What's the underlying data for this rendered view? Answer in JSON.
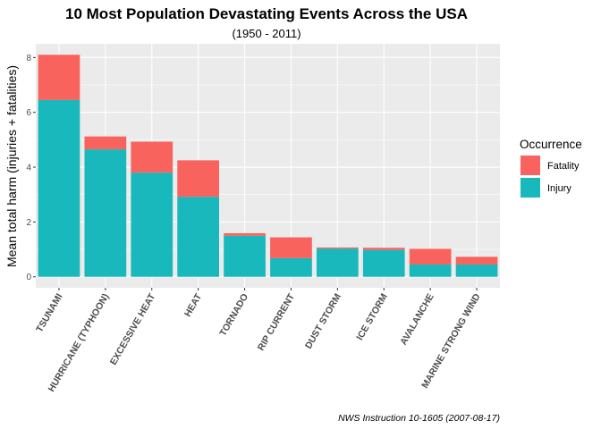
{
  "chart_data": {
    "type": "bar",
    "stacked": true,
    "title": "10 Most Population Devastating Events Across the USA",
    "subtitle": "(1950 - 2011)",
    "xlabel": "",
    "ylabel": "Mean total harm (injuries + fatalities)",
    "caption": "NWS Instruction 10-1605 (2007-08-17)",
    "categories": [
      "TSUNAMI",
      "HURRICANE (TYPHOON)",
      "EXCESSIVE HEAT",
      "HEAT",
      "TORNADO",
      "RIP CURRENT",
      "DUST STORM",
      "ICE STORM",
      "AVALANCHE",
      "MARINE STRONG WIND"
    ],
    "series": [
      {
        "name": "Injury",
        "color": "#19B8BC",
        "values": [
          6.45,
          4.65,
          3.8,
          2.92,
          1.5,
          0.68,
          1.03,
          0.98,
          0.45,
          0.45
        ]
      },
      {
        "name": "Fatality",
        "color": "#F8635E",
        "values": [
          1.65,
          0.47,
          1.13,
          1.33,
          0.09,
          0.76,
          0.04,
          0.08,
          0.57,
          0.28
        ]
      }
    ],
    "yticks": [
      0,
      2,
      4,
      6,
      8
    ],
    "ylim": [
      -0.4,
      8.5
    ],
    "grid": true,
    "legend": {
      "title": "Occurrence",
      "position": "right",
      "entries": [
        "Fatality",
        "Injury"
      ]
    }
  }
}
